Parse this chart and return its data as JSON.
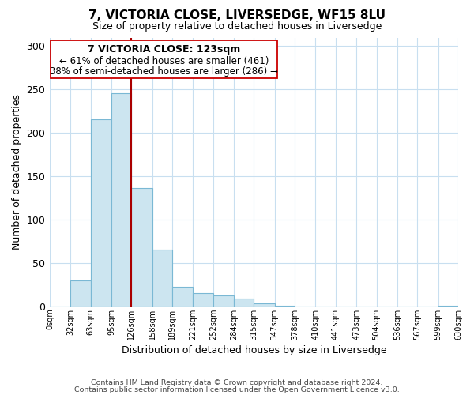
{
  "title": "7, VICTORIA CLOSE, LIVERSEDGE, WF15 8LU",
  "subtitle": "Size of property relative to detached houses in Liversedge",
  "xlabel": "Distribution of detached houses by size in Liversedge",
  "ylabel": "Number of detached properties",
  "bar_edges": [
    0,
    32,
    63,
    95,
    126,
    158,
    189,
    221,
    252,
    284,
    315,
    347,
    378,
    410,
    441,
    473,
    504,
    536,
    567,
    599,
    630
  ],
  "bar_heights": [
    0,
    30,
    216,
    246,
    136,
    65,
    23,
    15,
    13,
    9,
    3,
    1,
    0,
    0,
    0,
    0,
    0,
    0,
    0,
    1
  ],
  "bar_color": "#cce5f0",
  "bar_edgecolor": "#7ab8d4",
  "vline_x": 126,
  "vline_color": "#aa0000",
  "ylim": [
    0,
    310
  ],
  "xlim": [
    0,
    630
  ],
  "annotation_title": "7 VICTORIA CLOSE: 123sqm",
  "annotation_line1": "← 61% of detached houses are smaller (461)",
  "annotation_line2": "38% of semi-detached houses are larger (286) →",
  "tick_labels": [
    "0sqm",
    "32sqm",
    "63sqm",
    "95sqm",
    "126sqm",
    "158sqm",
    "189sqm",
    "221sqm",
    "252sqm",
    "284sqm",
    "315sqm",
    "347sqm",
    "378sqm",
    "410sqm",
    "441sqm",
    "473sqm",
    "504sqm",
    "536sqm",
    "567sqm",
    "599sqm",
    "630sqm"
  ],
  "yticks": [
    0,
    50,
    100,
    150,
    200,
    250,
    300
  ],
  "ytick_labels": [
    "0",
    "50",
    "100",
    "150",
    "200",
    "250",
    "300"
  ],
  "footer_line1": "Contains HM Land Registry data © Crown copyright and database right 2024.",
  "footer_line2": "Contains public sector information licensed under the Open Government Licence v3.0.",
  "background_color": "#ffffff",
  "grid_color": "#c8dff0"
}
